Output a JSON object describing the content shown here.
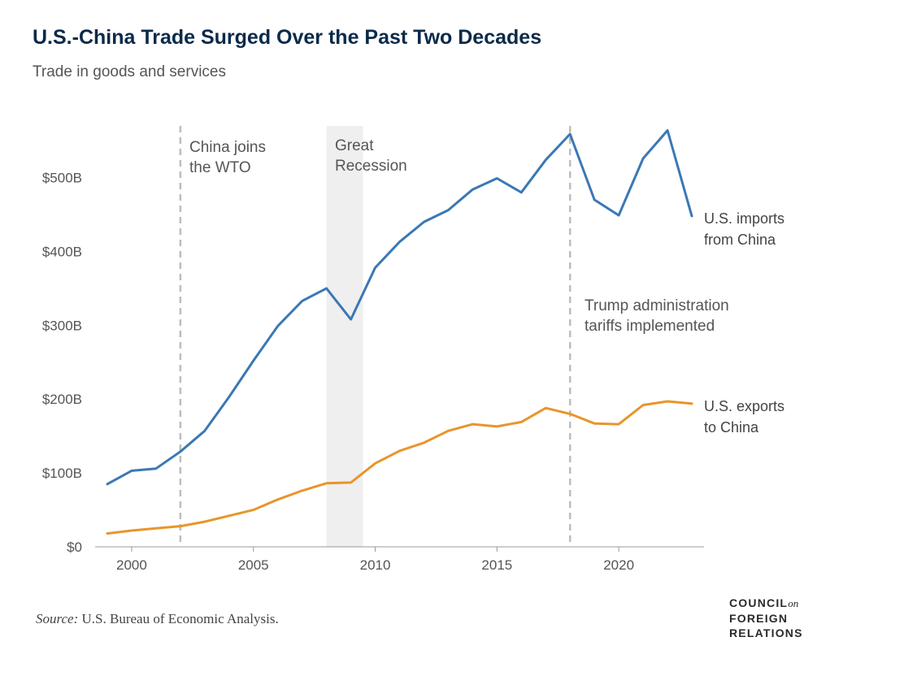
{
  "title": "U.S.-China Trade Surged Over the Past Two Decades",
  "subtitle": "Trade in goods and services",
  "source": {
    "label": "Source:",
    "text": "U.S. Bureau of Economic Analysis."
  },
  "logo": {
    "line1": "COUNCIL",
    "on": "on",
    "line2": "FOREIGN",
    "line3": "RELATIONS",
    "lettering_in_logo": true
  },
  "colors": {
    "imports": "#3a78b5",
    "exports": "#e8952b",
    "recession_band": "#efefef",
    "event_line": "#bdbdbd",
    "axis": "#999999"
  },
  "chart_data": {
    "type": "line",
    "title": "U.S.-China Trade Surged Over the Past Two Decades",
    "subtitle": "Trade in goods and services",
    "xlim": [
      1998.5,
      2023.5
    ],
    "ylim": [
      0,
      570
    ],
    "x_ticks": [
      2000,
      2005,
      2010,
      2015,
      2020
    ],
    "y_ticks": [
      {
        "value": 0,
        "label": "$0"
      },
      {
        "value": 100,
        "label": "$100B"
      },
      {
        "value": 200,
        "label": "$200B"
      },
      {
        "value": 300,
        "label": "$300B"
      },
      {
        "value": 400,
        "label": "$400B"
      },
      {
        "value": 500,
        "label": "$500B"
      }
    ],
    "grid": false,
    "x": [
      1999,
      2000,
      2001,
      2002,
      2003,
      2004,
      2005,
      2006,
      2007,
      2008,
      2009,
      2010,
      2011,
      2012,
      2013,
      2014,
      2015,
      2016,
      2017,
      2018,
      2019,
      2020,
      2021,
      2022,
      2023
    ],
    "series": [
      {
        "name": "U.S. imports from China",
        "label_lines": [
          "U.S. imports",
          "from China"
        ],
        "color": "#3a78b5",
        "values": [
          85,
          103,
          106,
          129,
          157,
          203,
          252,
          299,
          333,
          350,
          308,
          378,
          413,
          440,
          456,
          484,
          499,
          480,
          524,
          559,
          470,
          449,
          526,
          564,
          448
        ]
      },
      {
        "name": "U.S. exports to China",
        "label_lines": [
          "U.S. exports",
          "to China"
        ],
        "color": "#e8952b",
        "values": [
          18,
          22,
          25,
          28,
          34,
          42,
          50,
          64,
          76,
          86,
          87,
          113,
          130,
          141,
          157,
          166,
          163,
          169,
          188,
          180,
          167,
          166,
          192,
          197,
          194
        ]
      }
    ],
    "annotations": [
      {
        "type": "vline",
        "x": 2002,
        "lines": [
          "China joins",
          "the WTO"
        ]
      },
      {
        "type": "band",
        "x0": 2008,
        "x1": 2009.5,
        "lines": [
          "Great",
          "Recession"
        ]
      },
      {
        "type": "vline",
        "x": 2018,
        "lines": [
          "Trump administration",
          "tariffs implemented"
        ]
      }
    ]
  }
}
